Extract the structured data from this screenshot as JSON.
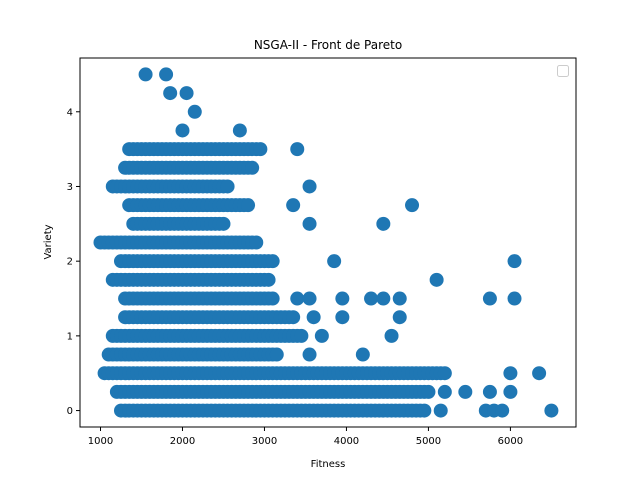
{
  "chart_data": {
    "type": "scatter",
    "title": "NSGA-II - Front de Pareto",
    "xlabel": "Fitness",
    "ylabel": "Variety",
    "xlim": [
      750,
      6800
    ],
    "ylim": [
      -0.22,
      4.72
    ],
    "xticks": [
      1000,
      2000,
      3000,
      4000,
      5000,
      6000
    ],
    "yticks": [
      0,
      1,
      2,
      3,
      4
    ],
    "xtick_labels": [
      "1000",
      "2000",
      "3000",
      "4000",
      "5000",
      "6000"
    ],
    "ytick_labels": [
      "0",
      "1",
      "2",
      "3",
      "4"
    ],
    "grid": false,
    "legend": {
      "placement": "top-right",
      "entries": []
    },
    "color": "#1f77b4",
    "series": [
      {
        "bands": [
          {
            "y": 0,
            "x_min": 1250,
            "x_max": 4950,
            "extra_x": [
              5150,
              5700,
              5800,
              5900,
              6500
            ]
          },
          {
            "y": 0.25,
            "x_min": 1200,
            "x_max": 5000,
            "extra_x": [
              5200,
              5450,
              5750,
              6000
            ]
          },
          {
            "y": 0.5,
            "x_min": 1050,
            "x_max": 5200,
            "extra_x": [
              6000,
              6350
            ]
          },
          {
            "y": 0.75,
            "x_min": 1100,
            "x_max": 3150,
            "extra_x": [
              3550,
              4200
            ]
          },
          {
            "y": 1.0,
            "x_min": 1150,
            "x_max": 3450,
            "extra_x": [
              3700,
              4550
            ]
          },
          {
            "y": 1.25,
            "x_min": 1300,
            "x_max": 3350,
            "extra_x": [
              3600,
              3950,
              4650
            ]
          },
          {
            "y": 1.5,
            "x_min": 1300,
            "x_max": 3100,
            "extra_x": [
              3400,
              3550,
              3950,
              4300,
              4450,
              4650,
              5750,
              6050
            ]
          },
          {
            "y": 1.75,
            "x_min": 1150,
            "x_max": 3050,
            "extra_x": [
              5100
            ]
          },
          {
            "y": 2.0,
            "x_min": 1250,
            "x_max": 3100,
            "extra_x": [
              3850,
              6050
            ]
          },
          {
            "y": 2.25,
            "x_min": 1000,
            "x_max": 2900,
            "extra_x": []
          },
          {
            "y": 2.5,
            "x_min": 1400,
            "x_max": 2500,
            "extra_x": [
              3550,
              4450
            ]
          },
          {
            "y": 2.75,
            "x_min": 1350,
            "x_max": 2800,
            "extra_x": [
              3350,
              4800
            ]
          },
          {
            "y": 3.0,
            "x_min": 1150,
            "x_max": 2550,
            "extra_x": [
              3550
            ]
          },
          {
            "y": 3.25,
            "x_min": 1300,
            "x_max": 2850,
            "extra_x": []
          },
          {
            "y": 3.5,
            "x_min": 1350,
            "x_max": 2950,
            "extra_x": [
              3400
            ]
          },
          {
            "y": 3.75,
            "x_min": 2000,
            "x_max": 2000,
            "extra_x": [
              2700
            ]
          },
          {
            "y": 4.0,
            "x_min": 2150,
            "x_max": 2150,
            "extra_x": []
          },
          {
            "y": 4.25,
            "x_min": 1850,
            "x_max": 1850,
            "extra_x": [
              2050
            ]
          },
          {
            "y": 4.5,
            "x_min": 1550,
            "x_max": 1550,
            "extra_x": [
              1800
            ]
          }
        ],
        "band_step": 50
      }
    ]
  }
}
